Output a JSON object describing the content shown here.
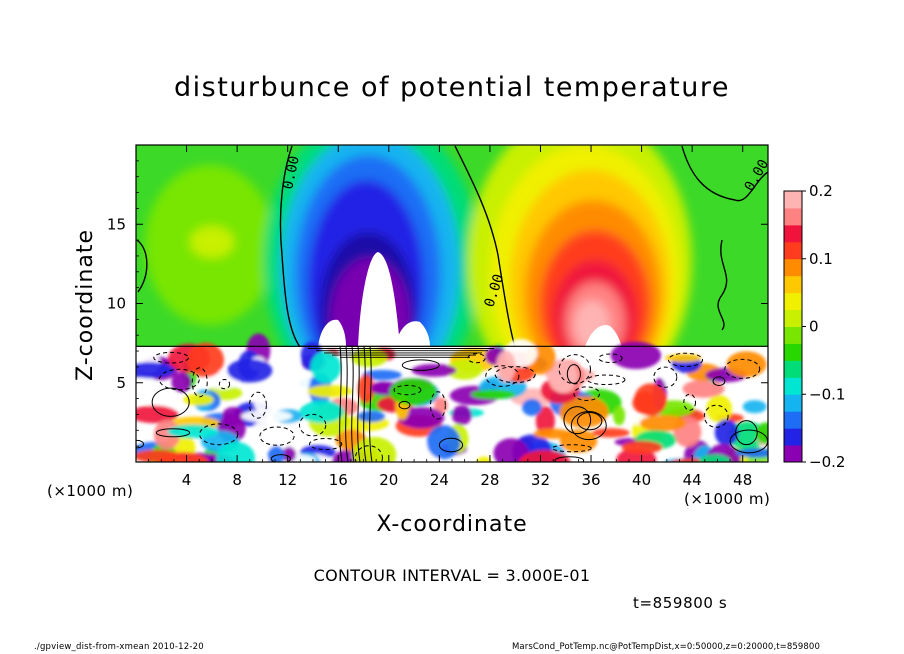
{
  "title": "disturbunce of potential temperature",
  "contour_interval_text": "CONTOUR INTERVAL = 3.000E-01",
  "time_text": "t=859800 s",
  "footer": {
    "left": "./gpview_dist-from-xmean  2010-12-20",
    "right": "MarsCond_PotTemp.nc@PotTempDist,x=0:50000,z=0:20000,t=859800"
  },
  "chart_data": {
    "type": "heatmap",
    "title": "disturbunce of potential temperature",
    "xlabel": "X-coordinate",
    "ylabel": "Z-coordinate",
    "x_unit": "(×1000 m)",
    "y_unit": "(×1000 m)",
    "xlim": [
      0,
      50
    ],
    "ylim": [
      0,
      20
    ],
    "x_ticks": [
      "4",
      "8",
      "12",
      "16",
      "20",
      "24",
      "28",
      "32",
      "36",
      "40",
      "44",
      "48"
    ],
    "x_tick_values": [
      4,
      8,
      12,
      16,
      20,
      24,
      28,
      32,
      36,
      40,
      44,
      48
    ],
    "y_ticks": [
      "5",
      "10",
      "15"
    ],
    "y_tick_values": [
      5,
      10,
      15
    ],
    "colorbar": {
      "vmin": -0.2,
      "vmax": 0.2,
      "tick_labels": [
        "0.2",
        "0.1",
        "0",
        "−0.1",
        "−0.2"
      ],
      "tick_values": [
        0.2,
        0.1,
        0,
        -0.1,
        -0.2
      ],
      "colors": [
        "#8b00b2",
        "#2323e6",
        "#1e6ef5",
        "#14b4f0",
        "#00e6d2",
        "#00dc78",
        "#28d700",
        "#78e600",
        "#c8f000",
        "#f0f000",
        "#ffc800",
        "#ff8c00",
        "#ff3c1e",
        "#f0143c",
        "#ff8282",
        "#ffb4b4"
      ]
    },
    "contour_labels": [
      "0.00",
      "0.00",
      "0.00"
    ],
    "contour_interval": "3.000E-01",
    "boundary_layer_top_z": 7.3,
    "features": [
      {
        "name": "cold plume",
        "x_center": 19.5,
        "z_top": 19,
        "min_value": -0.2
      },
      {
        "name": "warm plume",
        "x_center": 35,
        "z_top": 19,
        "max_value": 0.2
      }
    ]
  }
}
